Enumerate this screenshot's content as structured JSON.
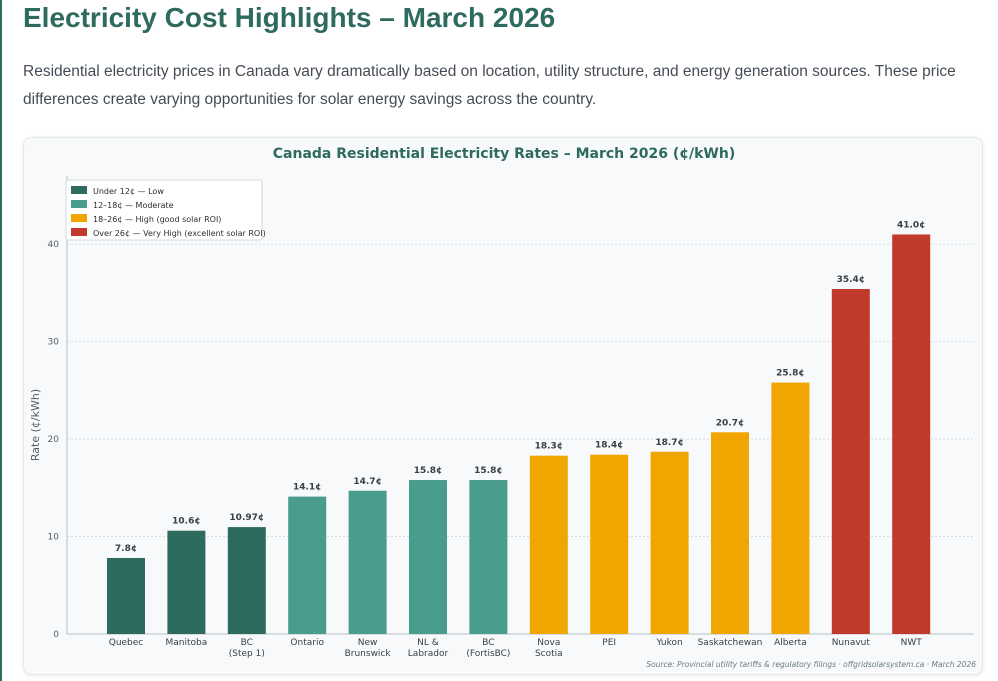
{
  "page": {
    "title": "Electricity Cost Highlights – March 2026",
    "intro": "Residential electricity prices in Canada vary dramatically based on location, utility structure, and energy generation sources. These price differences create varying opportunities for solar energy savings across the country."
  },
  "colors": {
    "low": "#2e6b5e",
    "moderate": "#4a9c8c",
    "high": "#f0a500",
    "very_high": "#c0392b",
    "title": "#2e6b5e",
    "axis_text": "#555e66",
    "label_text": "#3a3f44"
  },
  "chart_data": {
    "type": "bar",
    "title": "Canada Residential Electricity Rates – March 2026 (¢/kWh)",
    "xlabel": "",
    "ylabel": "Rate (¢/kWh)",
    "ylim": [
      0,
      47
    ],
    "yticks": [
      0,
      10,
      20,
      30,
      40
    ],
    "grid": true,
    "legend_position": "top-left",
    "legend": [
      {
        "key": "low",
        "label": "Under 12¢ — Low"
      },
      {
        "key": "moderate",
        "label": "12–18¢ — Moderate"
      },
      {
        "key": "high",
        "label": "18–26¢ — High (good solar ROI)"
      },
      {
        "key": "very_high",
        "label": "Over 26¢ — Very High (excellent solar ROI)"
      }
    ],
    "categories": [
      [
        "Quebec"
      ],
      [
        "Manitoba"
      ],
      [
        "BC",
        "(Step 1)"
      ],
      [
        "Ontario"
      ],
      [
        "New",
        "Brunswick"
      ],
      [
        "NL &",
        "Labrador"
      ],
      [
        "BC",
        "(FortisBC)"
      ],
      [
        "Nova",
        "Scotia"
      ],
      [
        "PEI"
      ],
      [
        "Yukon"
      ],
      [
        "Saskatchewan"
      ],
      [
        "Alberta"
      ],
      [
        "Nunavut"
      ],
      [
        "NWT"
      ]
    ],
    "values": [
      7.8,
      10.6,
      10.97,
      14.1,
      14.7,
      15.8,
      15.8,
      18.3,
      18.4,
      18.7,
      20.7,
      25.8,
      35.4,
      41.0
    ],
    "value_labels": [
      "7.8¢",
      "10.6¢",
      "10.97¢",
      "14.1¢",
      "14.7¢",
      "15.8¢",
      "15.8¢",
      "18.3¢",
      "18.4¢",
      "18.7¢",
      "20.7¢",
      "25.8¢",
      "35.4¢",
      "41.0¢"
    ],
    "tiers": [
      "low",
      "low",
      "low",
      "moderate",
      "moderate",
      "moderate",
      "moderate",
      "high",
      "high",
      "high",
      "high",
      "high",
      "very_high",
      "very_high"
    ],
    "source": "Source: Provincial utility tariffs & regulatory filings · offgridsolarsystem.ca · March 2026"
  }
}
